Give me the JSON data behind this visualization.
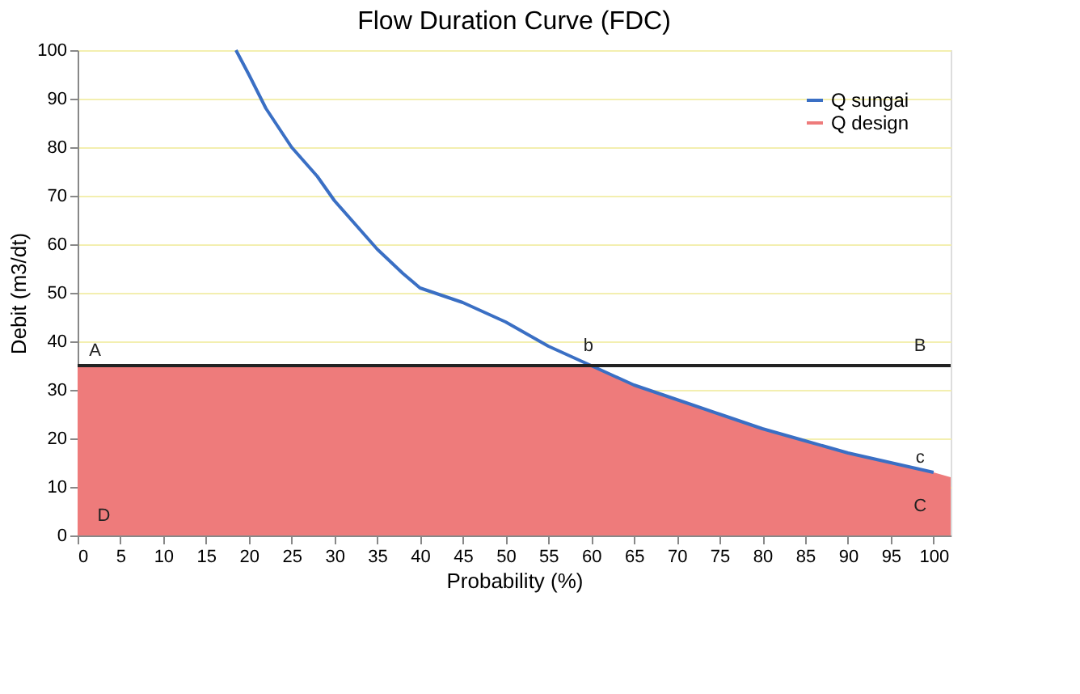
{
  "chart_data": {
    "type": "line",
    "title": "Flow Duration Curve (FDC)",
    "xlabel": "Probability (%)",
    "ylabel": "Debit (m3/dt)",
    "xlim": [
      0,
      102
    ],
    "xticks": [
      0,
      5,
      10,
      15,
      20,
      25,
      30,
      35,
      40,
      45,
      50,
      55,
      60,
      65,
      70,
      75,
      80,
      85,
      90,
      95,
      100
    ],
    "ylim": [
      0,
      100
    ],
    "yticks": [
      0,
      10,
      20,
      30,
      40,
      50,
      60,
      70,
      80,
      90,
      100
    ],
    "grid": "y",
    "legend": "top right",
    "marker": "none",
    "line_style": "solid",
    "series": [
      {
        "name": "Q design",
        "type": "area",
        "color": "#ee7b7b",
        "x": [
          0,
          60,
          65,
          70,
          75,
          80,
          85,
          90,
          95,
          100,
          102
        ],
        "values": [
          35,
          35,
          31,
          28,
          25,
          22,
          19.5,
          17,
          15,
          13,
          12
        ]
      },
      {
        "name": "Q sungai",
        "color": "#3a6fc4",
        "x": [
          18.5,
          20,
          22,
          25,
          28,
          30,
          33,
          35,
          38,
          40,
          45,
          50,
          55,
          60,
          65,
          70,
          75,
          80,
          85,
          90,
          95,
          100
        ],
        "values": [
          100,
          95,
          88,
          80,
          74,
          69,
          63,
          59,
          54,
          51,
          48,
          44,
          39,
          35,
          31,
          28,
          25,
          22,
          19.5,
          17,
          15,
          13
        ]
      }
    ],
    "ref_lines": [
      {
        "axis": "y",
        "value": 35,
        "color": "#222222"
      }
    ],
    "annotations": [
      "A",
      "b",
      "B",
      "c",
      "C",
      "D"
    ]
  }
}
